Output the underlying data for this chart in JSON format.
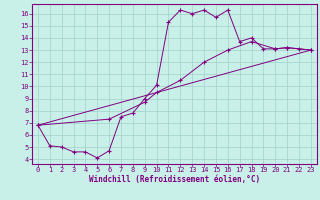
{
  "xlabel": "Windchill (Refroidissement éolien,°C)",
  "bg_color": "#c8f0e8",
  "line_color": "#800080",
  "grid_color": "#a0d0c8",
  "x_ticks": [
    0,
    1,
    2,
    3,
    4,
    5,
    6,
    7,
    8,
    9,
    10,
    11,
    12,
    13,
    14,
    15,
    16,
    17,
    18,
    19,
    20,
    21,
    22,
    23
  ],
  "y_ticks": [
    4,
    5,
    6,
    7,
    8,
    9,
    10,
    11,
    12,
    13,
    14,
    15,
    16
  ],
  "ylim": [
    3.6,
    16.8
  ],
  "xlim": [
    -0.5,
    23.5
  ],
  "series1_x": [
    0,
    1,
    2,
    3,
    4,
    5,
    6,
    7,
    8,
    9,
    10,
    11,
    12,
    13,
    14,
    15,
    16,
    17,
    18,
    19,
    20,
    21,
    22,
    23
  ],
  "series1_y": [
    6.8,
    5.1,
    5.0,
    4.6,
    4.6,
    4.1,
    4.7,
    7.5,
    7.8,
    9.0,
    10.1,
    15.3,
    16.3,
    16.0,
    16.3,
    15.7,
    16.3,
    13.7,
    14.0,
    13.1,
    13.1,
    13.2,
    13.1,
    13.0
  ],
  "series2_x": [
    0,
    6,
    9,
    10,
    12,
    14,
    16,
    18,
    20,
    21,
    23
  ],
  "series2_y": [
    6.8,
    7.3,
    8.7,
    9.5,
    10.5,
    12.0,
    13.0,
    13.7,
    13.1,
    13.2,
    13.0
  ],
  "series3_x": [
    0,
    23
  ],
  "series3_y": [
    6.8,
    13.0
  ],
  "tick_fontsize": 5.0,
  "xlabel_fontsize": 5.5
}
